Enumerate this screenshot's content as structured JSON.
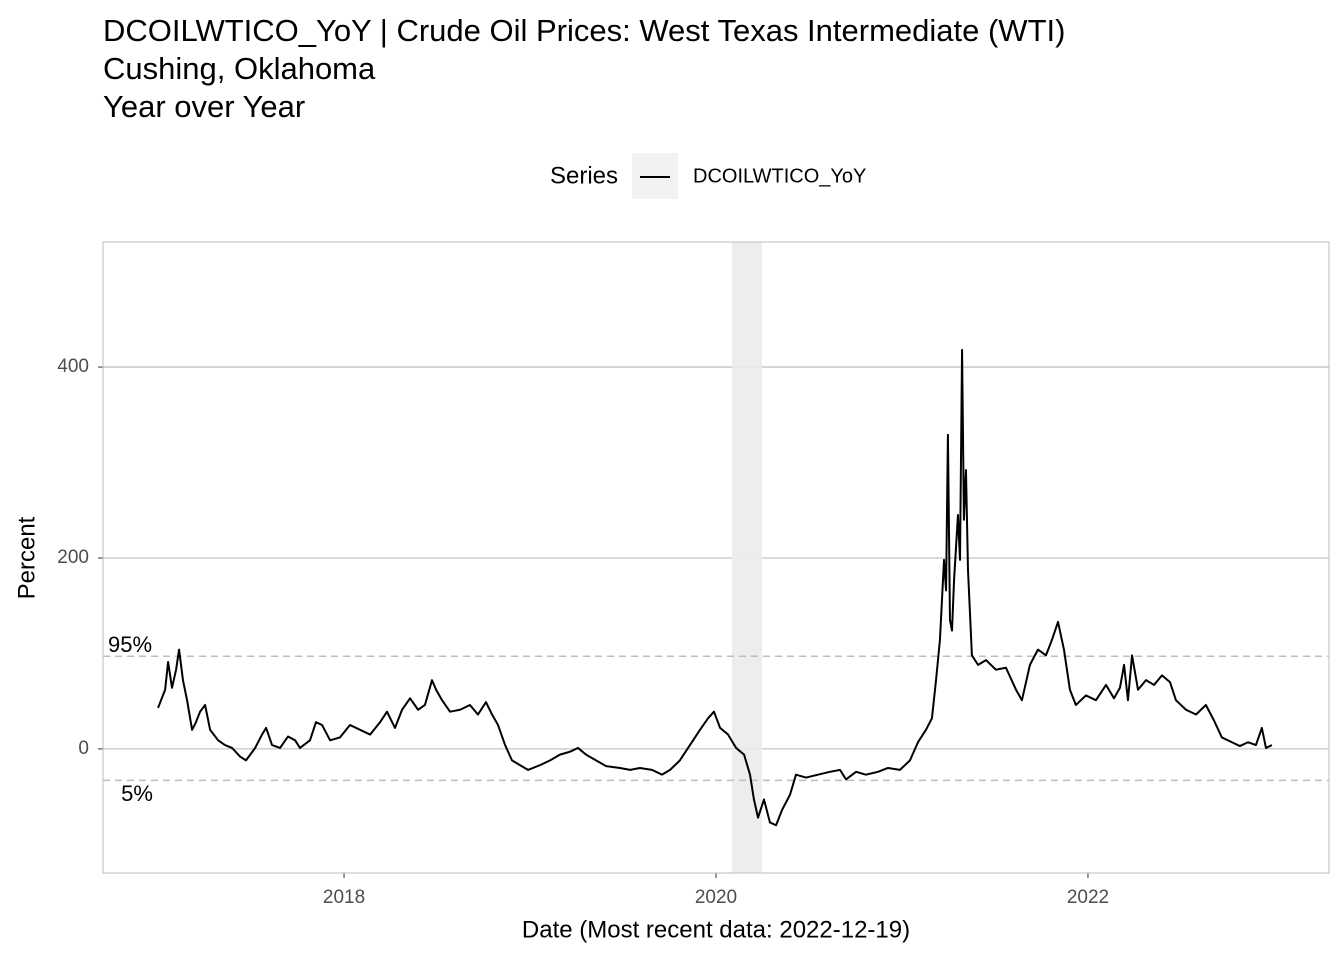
{
  "chart_data": {
    "type": "line",
    "title": [
      "DCOILWTICO_YoY | Crude Oil Prices: West Texas Intermediate (WTI)",
      "Cushing, Oklahoma",
      "Year over Year"
    ],
    "x_label": "Date (Most recent data: 2022-12-19)",
    "y_label": "Percent",
    "legend_title": "Series",
    "legend_position": "top",
    "grid": true,
    "xlim": [
      2016.704,
      2023.296
    ],
    "xticks": [
      2018,
      2020,
      2022
    ],
    "ylim": [
      -130,
      531
    ],
    "yticks": [
      0,
      200,
      400
    ],
    "shaded_regions": [
      [
        2020.086,
        2020.247
      ]
    ],
    "shade_color": "#ebebeb",
    "quantile_lines": [
      {
        "label": "95%",
        "value": 97
      },
      {
        "label": "5%",
        "value": -33
      }
    ],
    "x": [
      2017.0,
      2017.038,
      2017.054,
      2017.075,
      2017.097,
      2017.113,
      2017.134,
      2017.156,
      2017.183,
      2017.204,
      2017.226,
      2017.253,
      2017.28,
      2017.323,
      2017.36,
      2017.398,
      2017.441,
      2017.473,
      2017.522,
      2017.559,
      2017.581,
      2017.613,
      2017.656,
      2017.699,
      2017.737,
      2017.763,
      2017.817,
      2017.849,
      2017.882,
      2017.925,
      2017.978,
      2018.032,
      2018.086,
      2018.14,
      2018.194,
      2018.231,
      2018.274,
      2018.312,
      2018.355,
      2018.398,
      2018.435,
      2018.473,
      2018.495,
      2018.527,
      2018.57,
      2018.624,
      2018.677,
      2018.72,
      2018.763,
      2018.796,
      2018.828,
      2018.866,
      2018.903,
      2018.946,
      2018.989,
      2019.054,
      2019.108,
      2019.161,
      2019.215,
      2019.258,
      2019.301,
      2019.355,
      2019.409,
      2019.484,
      2019.538,
      2019.591,
      2019.656,
      2019.71,
      2019.753,
      2019.806,
      2019.86,
      2019.914,
      2019.957,
      2019.989,
      2020.022,
      2020.065,
      2020.108,
      2020.151,
      2020.183,
      2020.204,
      2020.226,
      2020.258,
      2020.29,
      2020.323,
      2020.355,
      2020.398,
      2020.43,
      2020.484,
      2020.548,
      2020.613,
      2020.667,
      2020.699,
      2020.753,
      2020.806,
      2020.871,
      2020.925,
      2020.989,
      2021.043,
      2021.086,
      2021.129,
      2021.161,
      2021.183,
      2021.204,
      2021.226,
      2021.237,
      2021.247,
      2021.258,
      2021.269,
      2021.28,
      2021.301,
      2021.312,
      2021.323,
      2021.333,
      2021.344,
      2021.355,
      2021.376,
      2021.409,
      2021.452,
      2021.505,
      2021.559,
      2021.613,
      2021.645,
      2021.688,
      2021.731,
      2021.774,
      2021.806,
      2021.839,
      2021.871,
      2021.903,
      2021.935,
      2021.989,
      2022.043,
      2022.097,
      2022.14,
      2022.172,
      2022.194,
      2022.215,
      2022.237,
      2022.269,
      2022.312,
      2022.355,
      2022.398,
      2022.441,
      2022.473,
      2022.527,
      2022.581,
      2022.634,
      2022.677,
      2022.72,
      2022.774,
      2022.817,
      2022.86,
      2022.903,
      2022.935,
      2022.957,
      2022.989
    ],
    "series": [
      {
        "name": "DCOILWTICO_YoY",
        "color": "#000000",
        "values": [
          43,
          62,
          91,
          64,
          83,
          104,
          72,
          51,
          20,
          28,
          39,
          46,
          20,
          9,
          4,
          1,
          -8,
          -12,
          1,
          15,
          22,
          4,
          1,
          13,
          9,
          1,
          9,
          28,
          25,
          9,
          12,
          25,
          20,
          15,
          28,
          39,
          22,
          41,
          53,
          41,
          46,
          72,
          62,
          51,
          39,
          41,
          46,
          36,
          49,
          36,
          25,
          4,
          -12,
          -17,
          -22,
          -17,
          -12,
          -6,
          -3,
          1,
          -6,
          -12,
          -18,
          -20,
          -22,
          -20,
          -22,
          -27,
          -22,
          -12,
          4,
          20,
          32,
          39,
          22,
          15,
          1,
          -6,
          -27,
          -53,
          -72,
          -53,
          -77,
          -80,
          -64,
          -48,
          -27,
          -30,
          -27,
          -24,
          -22,
          -32,
          -24,
          -27,
          -24,
          -20,
          -22,
          -12,
          7,
          20,
          32,
          72,
          114,
          198,
          166,
          329,
          135,
          124,
          177,
          245,
          198,
          418,
          240,
          292,
          187,
          98,
          88,
          93,
          83,
          85,
          62,
          51,
          88,
          104,
          98,
          114,
          133,
          104,
          62,
          46,
          56,
          51,
          67,
          53,
          64,
          88,
          51,
          98,
          62,
          72,
          67,
          77,
          70,
          51,
          41,
          36,
          46,
          30,
          12,
          7,
          3,
          7,
          4,
          22,
          1,
          4
        ]
      }
    ]
  }
}
